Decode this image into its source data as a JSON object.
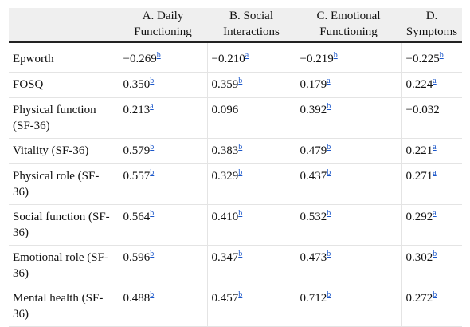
{
  "table": {
    "headers": [
      "",
      "A. Daily Functioning",
      "B. Social Interactions",
      "C. Emotional Functioning",
      "D. Symptoms"
    ],
    "rows": [
      {
        "label": "Epworth",
        "cells": [
          {
            "v": "−0.269",
            "s": "b"
          },
          {
            "v": "−0.210",
            "s": "a"
          },
          {
            "v": "−0.219",
            "s": "b"
          },
          {
            "v": "−0.225",
            "s": "b"
          }
        ]
      },
      {
        "label": "FOSQ",
        "cells": [
          {
            "v": "0.350",
            "s": "b"
          },
          {
            "v": "0.359",
            "s": "b"
          },
          {
            "v": "0.179",
            "s": "a"
          },
          {
            "v": "0.224",
            "s": "a"
          }
        ]
      },
      {
        "label": "Physical function (SF-36)",
        "cells": [
          {
            "v": "0.213",
            "s": "a"
          },
          {
            "v": "0.096",
            "s": ""
          },
          {
            "v": "0.392",
            "s": "b"
          },
          {
            "v": "−0.032",
            "s": ""
          }
        ]
      },
      {
        "label": "Vitality (SF-36)",
        "cells": [
          {
            "v": "0.579",
            "s": "b"
          },
          {
            "v": "0.383",
            "s": "b"
          },
          {
            "v": "0.479",
            "s": "b"
          },
          {
            "v": "0.221",
            "s": "a"
          }
        ]
      },
      {
        "label": "Physical role (SF-36)",
        "cells": [
          {
            "v": "0.557",
            "s": "b"
          },
          {
            "v": "0.329",
            "s": "b"
          },
          {
            "v": "0.437",
            "s": "b"
          },
          {
            "v": "0.271",
            "s": "a"
          }
        ]
      },
      {
        "label": "Social function (SF-36)",
        "cells": [
          {
            "v": "0.564",
            "s": "b"
          },
          {
            "v": "0.410",
            "s": "b"
          },
          {
            "v": "0.532",
            "s": "b"
          },
          {
            "v": "0.292",
            "s": "a"
          }
        ]
      },
      {
        "label": "Emotional role (SF-36)",
        "cells": [
          {
            "v": "0.596",
            "s": "b"
          },
          {
            "v": "0.347",
            "s": "b"
          },
          {
            "v": "0.473",
            "s": "b"
          },
          {
            "v": "0.302",
            "s": "b"
          }
        ]
      },
      {
        "label": "Mental health (SF-36)",
        "cells": [
          {
            "v": "0.488",
            "s": "b"
          },
          {
            "v": "0.457",
            "s": "b"
          },
          {
            "v": "0.712",
            "s": "b"
          },
          {
            "v": "0.272",
            "s": "b"
          }
        ]
      }
    ]
  }
}
